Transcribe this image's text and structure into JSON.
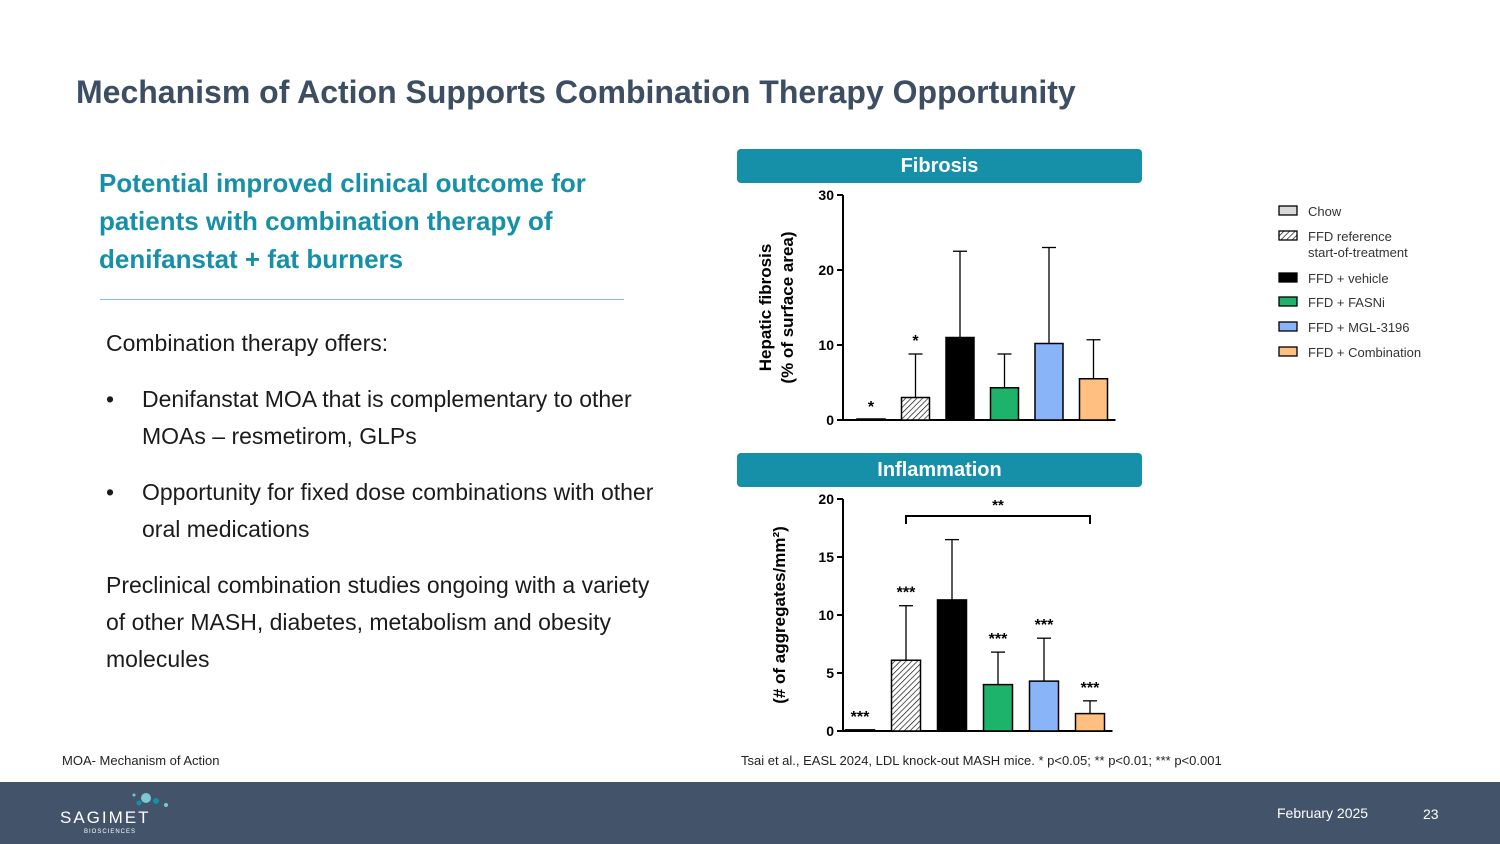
{
  "slide": {
    "title": "Mechanism of Action Supports Combination Therapy Opportunity",
    "subtitle": "Potential improved clinical outcome for patients with combination therapy of denifanstat + fat burners",
    "intro": "Combination therapy offers:",
    "bullets": [
      "Denifanstat MOA that is complementary to other MOAs – resmetirom, GLPs",
      "Opportunity for fixed dose combinations with other oral medications"
    ],
    "bullet_symbol": "•",
    "closing": "Preclinical combination studies ongoing with a variety of other MASH, diabetes, metabolism and obesity molecules",
    "footnote_left": "MOA- Mechanism of Action",
    "footnote_right": "Tsai et al., EASL 2024, LDL knock-out MASH mice. * p<0.05; ** p<0.01; *** p<0.001"
  },
  "footer": {
    "date": "February 2025",
    "page": "23",
    "logo_text": "SAGIMET",
    "logo_sub": "BIOSCIENCES",
    "color": "#43536a"
  },
  "legend": [
    {
      "label": "Chow",
      "fill": "#d9d9d9",
      "pattern": "none"
    },
    {
      "label": "FFD reference start-of-treatment",
      "fill": "#ffffff",
      "pattern": "hatch"
    },
    {
      "label": "FFD + vehicle",
      "fill": "#000000",
      "pattern": "none"
    },
    {
      "label": "FFD + FASNi",
      "fill": "#1db36b",
      "pattern": "none"
    },
    {
      "label": "FFD + MGL-3196",
      "fill": "#8ab4f8",
      "pattern": "none"
    },
    {
      "label": "FFD + Combination",
      "fill": "#ffbf80",
      "pattern": "none"
    }
  ],
  "chart_data": [
    {
      "type": "bar",
      "panel_title": "Fibrosis",
      "ylabel": "Hepatic fibrosis (% of surface area)",
      "ylabel_lines": [
        "Hepatic fibrosis",
        "(% of surface area)"
      ],
      "ylim": [
        0,
        30
      ],
      "yticks": [
        0,
        10,
        20,
        30
      ],
      "categories": [
        "Chow",
        "FFD reference start-of-treatment",
        "FFD + vehicle",
        "FFD + FASNi",
        "FFD + MGL-3196",
        "FFD + Combination"
      ],
      "values": [
        0,
        3.0,
        11.0,
        4.3,
        10.2,
        5.5
      ],
      "errors": [
        0,
        8.8,
        22.5,
        8.8,
        23.0,
        10.7
      ],
      "significance": [
        "*",
        "*",
        "",
        "",
        "",
        ""
      ],
      "grid": false
    },
    {
      "type": "bar",
      "panel_title": "Inflammation",
      "ylabel": "(# of aggregates/mm²)",
      "ylabel_lines": [
        "(# of aggregates/mm²)"
      ],
      "ylim": [
        0,
        20
      ],
      "yticks": [
        0,
        5,
        10,
        15,
        20
      ],
      "categories": [
        "Chow",
        "FFD reference start-of-treatment",
        "FFD + vehicle",
        "FFD + FASNi",
        "FFD + MGL-3196",
        "FFD + Combination"
      ],
      "values": [
        0.1,
        6.1,
        11.3,
        4.0,
        4.3,
        1.5
      ],
      "errors": [
        0.1,
        10.8,
        16.5,
        6.8,
        8.0,
        2.6
      ],
      "significance": [
        "***",
        "***",
        "",
        "***",
        "***",
        "***"
      ],
      "bracket": {
        "from": 1,
        "to": 5,
        "label": "**"
      },
      "grid": false
    }
  ]
}
